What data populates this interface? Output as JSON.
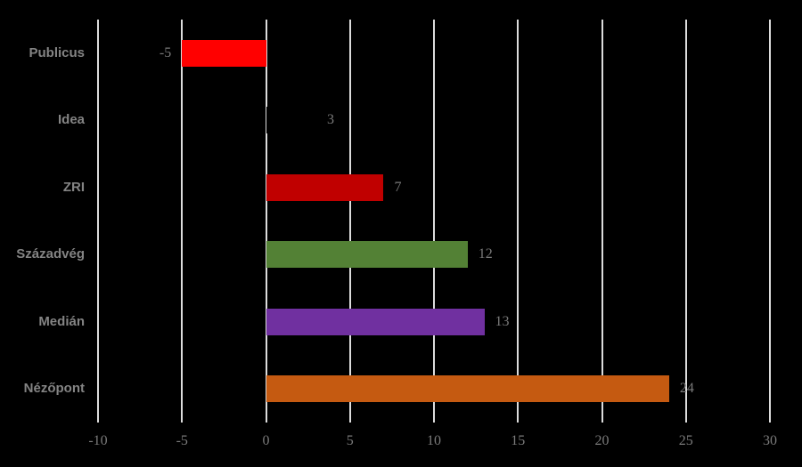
{
  "chart_data": {
    "type": "bar",
    "orientation": "horizontal",
    "title": "",
    "xlabel": "",
    "ylabel": "",
    "categories": [
      "Publicus",
      "Idea",
      "ZRI",
      "Századvég",
      "Medián",
      "Nézőpont"
    ],
    "values": [
      -5,
      3,
      7,
      12,
      13,
      24
    ],
    "data_labels": [
      "-5",
      "3",
      "7",
      "12",
      "13",
      "24"
    ],
    "bar_colors": [
      "#FF0000",
      "#000000",
      "#C00000",
      "#538135",
      "#7030A0",
      "#C55A11"
    ],
    "x_ticks": [
      -10,
      -5,
      0,
      5,
      10,
      15,
      20,
      25,
      30
    ],
    "x_tick_labels": [
      "-10",
      "-5",
      "0",
      "5",
      "10",
      "15",
      "20",
      "25",
      "30"
    ],
    "xlim": [
      -10,
      30
    ],
    "grid": "vertical-only",
    "legend": "none",
    "colors": {
      "background": "#000000",
      "gridline": "#DCDCDC",
      "tick_label": "#7A7A7A",
      "data_label": "#7A7A7A",
      "category_label": "#848484"
    }
  }
}
